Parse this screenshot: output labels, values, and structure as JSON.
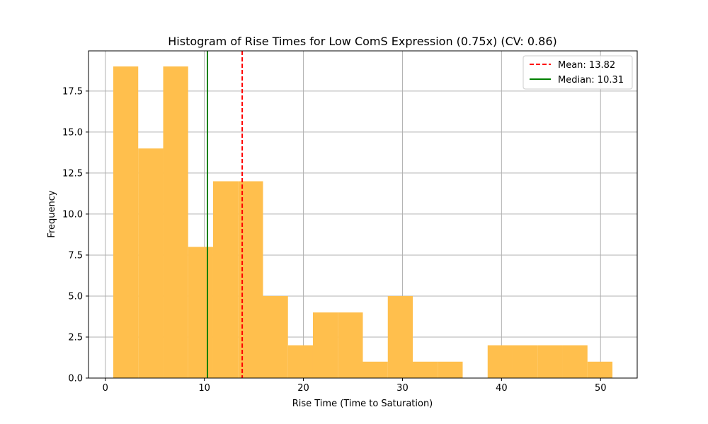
{
  "chart_data": {
    "type": "bar",
    "subtype": "histogram",
    "title": "Histogram of Rise Times for Low ComS Expression (0.75x) (CV: 0.86)",
    "xlabel": "Rise Time (Time to Saturation)",
    "ylabel": "Frequency",
    "xlim": [
      -1.7,
      53.7
    ],
    "ylim": [
      0,
      19.95
    ],
    "xticks": [
      0,
      10,
      20,
      30,
      40,
      50
    ],
    "yticks": [
      0.0,
      2.5,
      5.0,
      7.5,
      10.0,
      12.5,
      15.0,
      17.5
    ],
    "grid": true,
    "legend_position": "upper-right",
    "bins": [
      {
        "x0": 0.8,
        "x1": 3.32,
        "count": 19
      },
      {
        "x0": 3.32,
        "x1": 5.84,
        "count": 14
      },
      {
        "x0": 5.84,
        "x1": 8.36,
        "count": 19
      },
      {
        "x0": 8.36,
        "x1": 10.88,
        "count": 8
      },
      {
        "x0": 10.88,
        "x1": 13.4,
        "count": 12
      },
      {
        "x0": 13.4,
        "x1": 15.92,
        "count": 12
      },
      {
        "x0": 15.92,
        "x1": 18.44,
        "count": 5
      },
      {
        "x0": 18.44,
        "x1": 20.96,
        "count": 2
      },
      {
        "x0": 20.96,
        "x1": 23.48,
        "count": 4
      },
      {
        "x0": 23.48,
        "x1": 26.0,
        "count": 4
      },
      {
        "x0": 26.0,
        "x1": 28.52,
        "count": 1
      },
      {
        "x0": 28.52,
        "x1": 31.04,
        "count": 5
      },
      {
        "x0": 31.04,
        "x1": 33.56,
        "count": 1
      },
      {
        "x0": 33.56,
        "x1": 36.08,
        "count": 1
      },
      {
        "x0": 36.08,
        "x1": 38.6,
        "count": 0
      },
      {
        "x0": 38.6,
        "x1": 41.12,
        "count": 2
      },
      {
        "x0": 41.12,
        "x1": 43.64,
        "count": 2
      },
      {
        "x0": 43.64,
        "x1": 46.16,
        "count": 2
      },
      {
        "x0": 46.16,
        "x1": 48.68,
        "count": 2
      },
      {
        "x0": 48.68,
        "x1": 51.2,
        "count": 1
      }
    ],
    "mean": 13.82,
    "median": 10.31,
    "lines": [
      {
        "label": "Mean: 13.82",
        "value": 13.82,
        "color": "#ff0000",
        "style": "dashed"
      },
      {
        "label": "Median: 10.31",
        "value": 10.31,
        "color": "#008000",
        "style": "solid"
      }
    ],
    "bar_color": "#ffbf4d"
  }
}
